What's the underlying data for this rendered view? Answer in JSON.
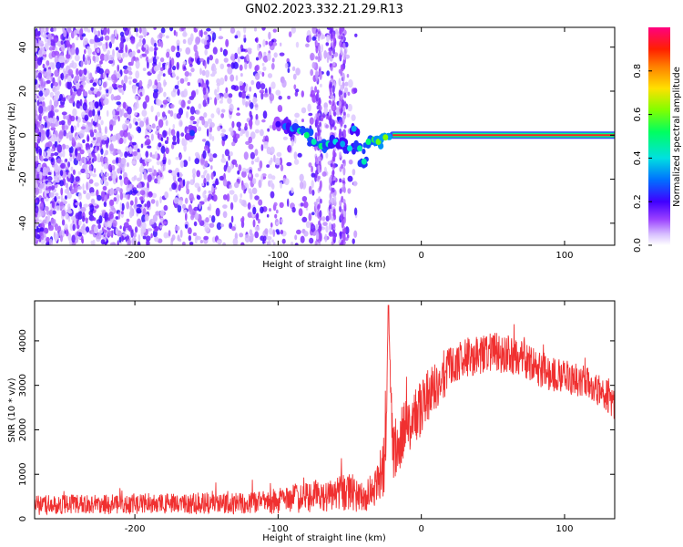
{
  "title": "GN02.2023.332.21.29.R13",
  "colors": {
    "snr_line": "#f03030",
    "axis": "#000000"
  },
  "chart_data": [
    {
      "type": "heatmap",
      "xlabel": "Height of straight line (km)",
      "ylabel": "Frequency (Hz)",
      "xlim": [
        -270,
        135
      ],
      "ylim": [
        -50,
        49
      ],
      "x_ticks": [
        -200,
        -100,
        0,
        100
      ],
      "y_ticks": [
        -40,
        -20,
        0,
        20,
        40
      ],
      "x_tick_labels": [
        "-200",
        "-100",
        "0",
        "100"
      ],
      "y_tick_labels": [
        "-40",
        "-20",
        "0",
        "20",
        "40"
      ],
      "colorbar": {
        "label": "Normalized spectral amplitude",
        "range": [
          0,
          1
        ],
        "ticks": [
          0,
          0.2,
          0.4,
          0.6,
          0.8
        ],
        "tick_labels": [
          "0.0",
          "0.2",
          "0.4",
          "0.6",
          "0.8"
        ],
        "colormap": "purple-blue-cyan-green-yellow-red-pink"
      },
      "signal_track": [
        {
          "x": -160,
          "y": 1,
          "amp": 0.25
        },
        {
          "x": -100,
          "y": 5,
          "amp": 0.2
        },
        {
          "x": -95,
          "y": 4,
          "amp": 0.3
        },
        {
          "x": -90,
          "y": 3,
          "amp": 0.35
        },
        {
          "x": -85,
          "y": 2,
          "amp": 0.45
        },
        {
          "x": -80,
          "y": 0,
          "amp": 0.5
        },
        {
          "x": -75,
          "y": -3,
          "amp": 0.45
        },
        {
          "x": -70,
          "y": -5,
          "amp": 0.5
        },
        {
          "x": -65,
          "y": -4,
          "amp": 0.45
        },
        {
          "x": -60,
          "y": -3,
          "amp": 0.4
        },
        {
          "x": -55,
          "y": -4,
          "amp": 0.35
        },
        {
          "x": -50,
          "y": -6,
          "amp": 0.4
        },
        {
          "x": -47,
          "y": 3,
          "amp": 0.35
        },
        {
          "x": -43,
          "y": -6,
          "amp": 0.45
        },
        {
          "x": -40,
          "y": -12,
          "amp": 0.45
        },
        {
          "x": -37,
          "y": -3,
          "amp": 0.5
        },
        {
          "x": -33,
          "y": -2,
          "amp": 0.55
        },
        {
          "x": -30,
          "y": -3,
          "amp": 0.6
        },
        {
          "x": -25,
          "y": -1,
          "amp": 0.62
        },
        {
          "x": -20,
          "y": 0,
          "amp": 0.68
        },
        {
          "x": -15,
          "y": 0,
          "amp": 0.72
        },
        {
          "x": -10,
          "y": 0,
          "amp": 0.76
        },
        {
          "x": -5,
          "y": 0,
          "amp": 0.8
        },
        {
          "x": 0,
          "y": 0,
          "amp": 0.85
        },
        {
          "x": 20,
          "y": 0,
          "amp": 0.9
        },
        {
          "x": 40,
          "y": 0,
          "amp": 0.9
        },
        {
          "x": 60,
          "y": 0,
          "amp": 0.9
        },
        {
          "x": 80,
          "y": 0,
          "amp": 0.9
        },
        {
          "x": 100,
          "y": 0,
          "amp": 0.9
        },
        {
          "x": 120,
          "y": 0,
          "amp": 0.9
        },
        {
          "x": 135,
          "y": 0,
          "amp": 0.9
        }
      ]
    },
    {
      "type": "line",
      "xlabel": "Height of straight line (km)",
      "ylabel": "SNR (10 * v/v)",
      "xlim": [
        -270,
        135
      ],
      "ylim": [
        0,
        4900
      ],
      "x_ticks": [
        -200,
        -100,
        0,
        100
      ],
      "y_ticks": [
        0,
        1000,
        2000,
        3000,
        4000
      ],
      "x_tick_labels": [
        "-200",
        "-100",
        "0",
        "100"
      ],
      "y_tick_labels": [
        "0",
        "1000",
        "2000",
        "3000",
        "4000"
      ],
      "grid": false,
      "series": [
        {
          "x": [
            -270,
            -250,
            -230,
            -210,
            -190,
            -170,
            -150,
            -130,
            -110,
            -100,
            -90,
            -80,
            -70,
            -60,
            -50,
            -45,
            -40,
            -35,
            -30,
            -25,
            -23,
            -20,
            -15,
            -10,
            -5,
            0,
            5,
            10,
            20,
            30,
            40,
            50,
            60,
            70,
            80,
            90,
            100,
            110,
            120,
            130,
            135
          ],
          "y": [
            300,
            330,
            320,
            330,
            340,
            330,
            350,
            340,
            360,
            400,
            450,
            500,
            520,
            550,
            600,
            500,
            500,
            600,
            900,
            1300,
            4800,
            1500,
            1800,
            2000,
            2200,
            2500,
            2800,
            3000,
            3400,
            3600,
            3700,
            3750,
            3700,
            3600,
            3400,
            3250,
            3200,
            3100,
            3000,
            2800,
            2600
          ],
          "spread": [
            220,
            230,
            220,
            230,
            240,
            230,
            250,
            240,
            260,
            300,
            330,
            360,
            380,
            400,
            420,
            350,
            350,
            400,
            600,
            700,
            0,
            700,
            700,
            700,
            700,
            650,
            600,
            550,
            500,
            450,
            450,
            450,
            450,
            420,
            400,
            380,
            380,
            380,
            380,
            400,
            400
          ]
        }
      ]
    }
  ]
}
